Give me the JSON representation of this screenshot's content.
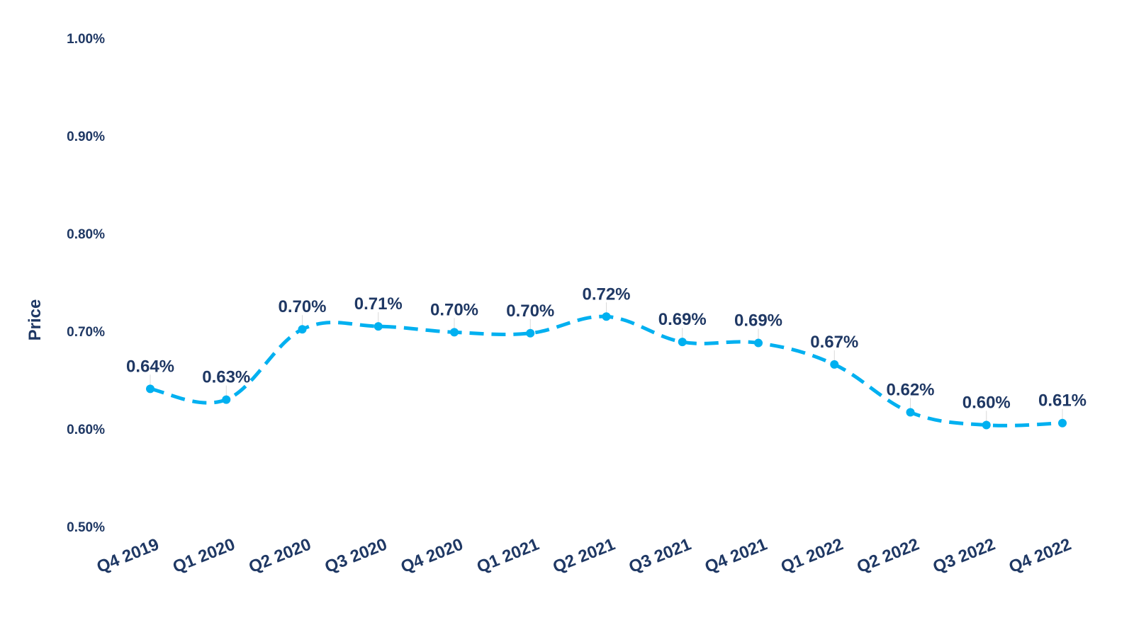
{
  "chart_data": {
    "type": "line",
    "title": "",
    "xlabel": "",
    "ylabel": "Price",
    "ylim": [
      0.5,
      1.0
    ],
    "y_ticks": [
      0.5,
      0.6,
      0.7,
      0.8,
      0.9,
      1.0
    ],
    "y_tick_labels": [
      "0.50%",
      "0.60%",
      "0.70%",
      "0.80%",
      "0.90%",
      "1.00%"
    ],
    "categories": [
      "Q4 2019",
      "Q1 2020",
      "Q2 2020",
      "Q3 2020",
      "Q4 2020",
      "Q1 2021",
      "Q2 2021",
      "Q3 2021",
      "Q4 2021",
      "Q1 2022",
      "Q2 2022",
      "Q3 2022",
      "Q4 2022"
    ],
    "series": [
      {
        "values": [
          0.641,
          0.63,
          0.702,
          0.705,
          0.699,
          0.698,
          0.715,
          0.689,
          0.688,
          0.666,
          0.617,
          0.604,
          0.606
        ],
        "labels": [
          "0.64%",
          "0.63%",
          "0.70%",
          "0.71%",
          "0.70%",
          "0.70%",
          "0.72%",
          "0.69%",
          "0.69%",
          "0.67%",
          "0.62%",
          "0.60%",
          "0.61%"
        ],
        "color": "#00b0f0",
        "line_style": "dashed",
        "markers": true
      }
    ],
    "grid": false,
    "legend": "none"
  },
  "colors": {
    "series": "#00b0f0",
    "text": "#1f3864"
  }
}
